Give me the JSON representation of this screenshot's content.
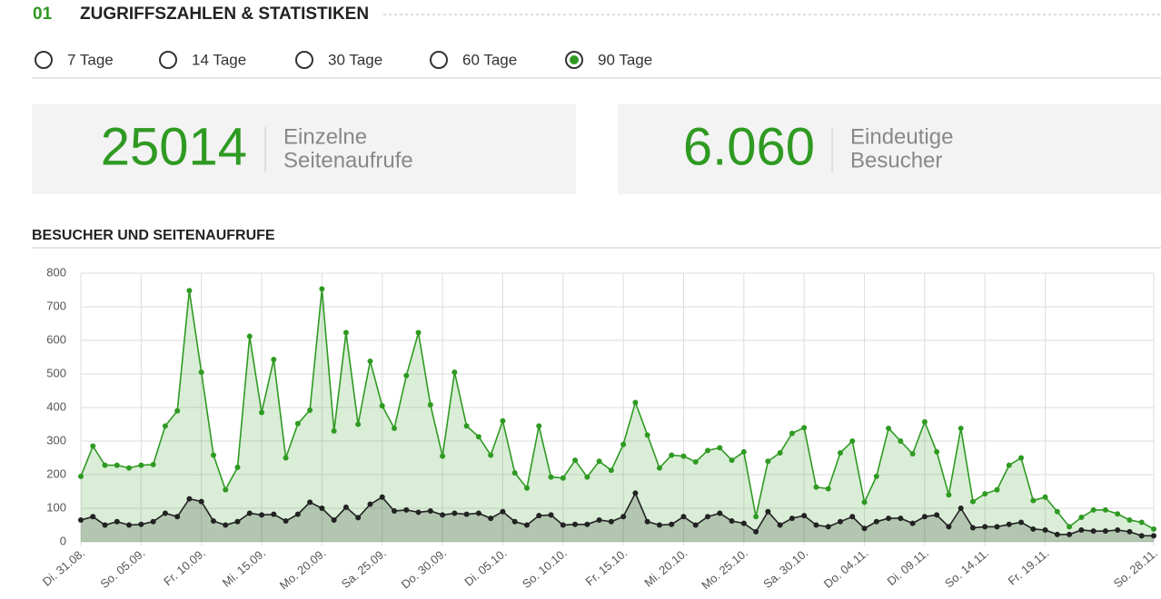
{
  "header": {
    "number": "01",
    "title": "ZUGRIFFSZAHLEN & STATISTIKEN"
  },
  "periods": {
    "options": [
      "7 Tage",
      "14 Tage",
      "30 Tage",
      "60 Tage",
      "90 Tage"
    ],
    "selected": 4
  },
  "stats": [
    {
      "value": "25014",
      "label": [
        "Einzelne",
        "Seitenaufrufe"
      ]
    },
    {
      "value": "6.060",
      "label": [
        "Eindeutige",
        "Besucher"
      ]
    }
  ],
  "chart_data": {
    "type": "line",
    "title": "BESUCHER UND SEITENAUFRUFE",
    "categories": [
      "Di. 31.08.",
      null,
      null,
      null,
      null,
      "So. 05.09.",
      null,
      null,
      null,
      null,
      "Fr. 10.09.",
      null,
      null,
      null,
      null,
      "Mi. 15.09.",
      null,
      null,
      null,
      null,
      "Mo. 20.09.",
      null,
      null,
      null,
      null,
      "Sa. 25.09.",
      null,
      null,
      null,
      null,
      "Do. 30.09.",
      null,
      null,
      null,
      null,
      "Di. 05.10.",
      null,
      null,
      null,
      null,
      "So. 10.10.",
      null,
      null,
      null,
      null,
      "Fr. 15.10.",
      null,
      null,
      null,
      null,
      "Mi. 20.10.",
      null,
      null,
      null,
      null,
      "Mo. 25.10.",
      null,
      null,
      null,
      null,
      "Sa. 30.10.",
      null,
      null,
      null,
      null,
      "Do. 04.11.",
      null,
      null,
      null,
      null,
      "Di. 09.11.",
      null,
      null,
      null,
      null,
      "So. 14.11.",
      null,
      null,
      null,
      null,
      "Fr. 19.11.",
      null,
      null,
      null,
      null,
      null,
      null,
      null,
      null,
      "So. 28.11."
    ],
    "series": [
      {
        "color": "#2f9a22",
        "values": [
          195,
          285,
          228,
          228,
          220,
          228,
          230,
          345,
          390,
          748,
          505,
          258,
          155,
          222,
          612,
          385,
          543,
          250,
          352,
          392,
          753,
          330,
          623,
          350,
          538,
          405,
          338,
          495,
          623,
          408,
          255,
          505,
          345,
          313,
          258,
          360,
          205,
          160,
          345,
          193,
          190,
          243,
          193,
          240,
          213,
          290,
          415,
          318,
          220,
          258,
          255,
          238,
          272,
          280,
          243,
          268,
          75,
          240,
          265,
          323,
          340,
          163,
          158,
          265,
          300,
          118,
          195,
          338,
          300,
          262,
          357,
          268,
          140,
          338,
          120,
          143,
          155,
          228,
          250,
          123,
          133,
          90,
          45,
          73,
          95,
          95,
          83,
          65,
          58,
          38
        ]
      },
      {
        "color": "#222222",
        "values": [
          65,
          75,
          50,
          60,
          50,
          52,
          60,
          85,
          75,
          128,
          120,
          62,
          50,
          60,
          85,
          80,
          82,
          62,
          82,
          118,
          100,
          65,
          103,
          72,
          112,
          133,
          92,
          95,
          88,
          92,
          80,
          85,
          82,
          85,
          70,
          90,
          60,
          50,
          78,
          80,
          50,
          52,
          52,
          65,
          60,
          75,
          145,
          60,
          50,
          52,
          75,
          50,
          75,
          85,
          62,
          55,
          30,
          90,
          50,
          70,
          78,
          50,
          45,
          60,
          75,
          40,
          60,
          70,
          70,
          55,
          75,
          80,
          45,
          100,
          42,
          45,
          45,
          52,
          58,
          38,
          35,
          22,
          22,
          35,
          32,
          32,
          35,
          30,
          18,
          18
        ]
      }
    ],
    "ylim": [
      0,
      800
    ],
    "yticks": [
      0,
      100,
      200,
      300,
      400,
      500,
      600,
      700,
      800
    ],
    "grid": true
  }
}
